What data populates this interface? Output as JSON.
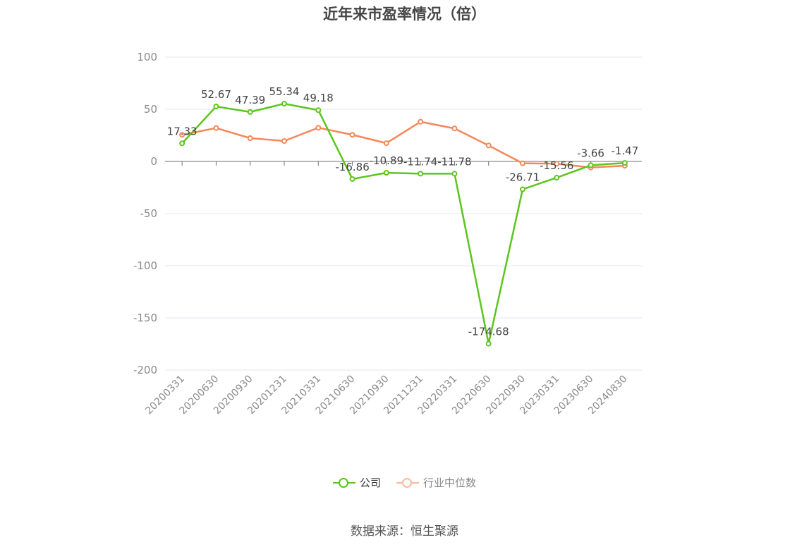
{
  "title": "近年来市盈率情况（倍）",
  "source": "数据来源：恒生聚源",
  "legend": [
    {
      "label": "公司",
      "color": "#5cc51d"
    },
    {
      "label": "行业中位数",
      "color": "#f5875a"
    }
  ],
  "chart_data": {
    "type": "line",
    "title": "近年来市盈率情况（倍）",
    "categories": [
      "20200331",
      "20200630",
      "20200930",
      "20201231",
      "20210331",
      "20210630",
      "20210930",
      "20211231",
      "20220331",
      "20220630",
      "20220930",
      "20230331",
      "20230630",
      "20240830"
    ],
    "ylim": [
      -200,
      100
    ],
    "yticks": [
      100,
      50,
      0,
      -50,
      -100,
      -150,
      -200
    ],
    "grid": true,
    "legend_position": "bottom",
    "series": [
      {
        "name": "公司",
        "color": "#5cc51d",
        "values": [
          17.33,
          52.67,
          47.39,
          55.34,
          49.18,
          -16.86,
          -10.89,
          -11.74,
          -11.78,
          -174.68,
          -26.71,
          -15.56,
          -3.66,
          -1.47
        ],
        "data_labels": [
          "17.33",
          "52.67",
          "47.39",
          "55.34",
          "49.18",
          "-16.86",
          "-10.89",
          "-11.74",
          "-11.78",
          "-174.68",
          "-26.71",
          "-15.56",
          "-3.66",
          "-1.47"
        ]
      },
      {
        "name": "行业中位数",
        "color": "#f5875a",
        "values": [
          25.5,
          32.0,
          22.3,
          19.6,
          32.3,
          25.5,
          17.5,
          38.0,
          31.6,
          15.3,
          -1.8,
          -2.2,
          -5.8,
          -4.1
        ]
      }
    ]
  }
}
